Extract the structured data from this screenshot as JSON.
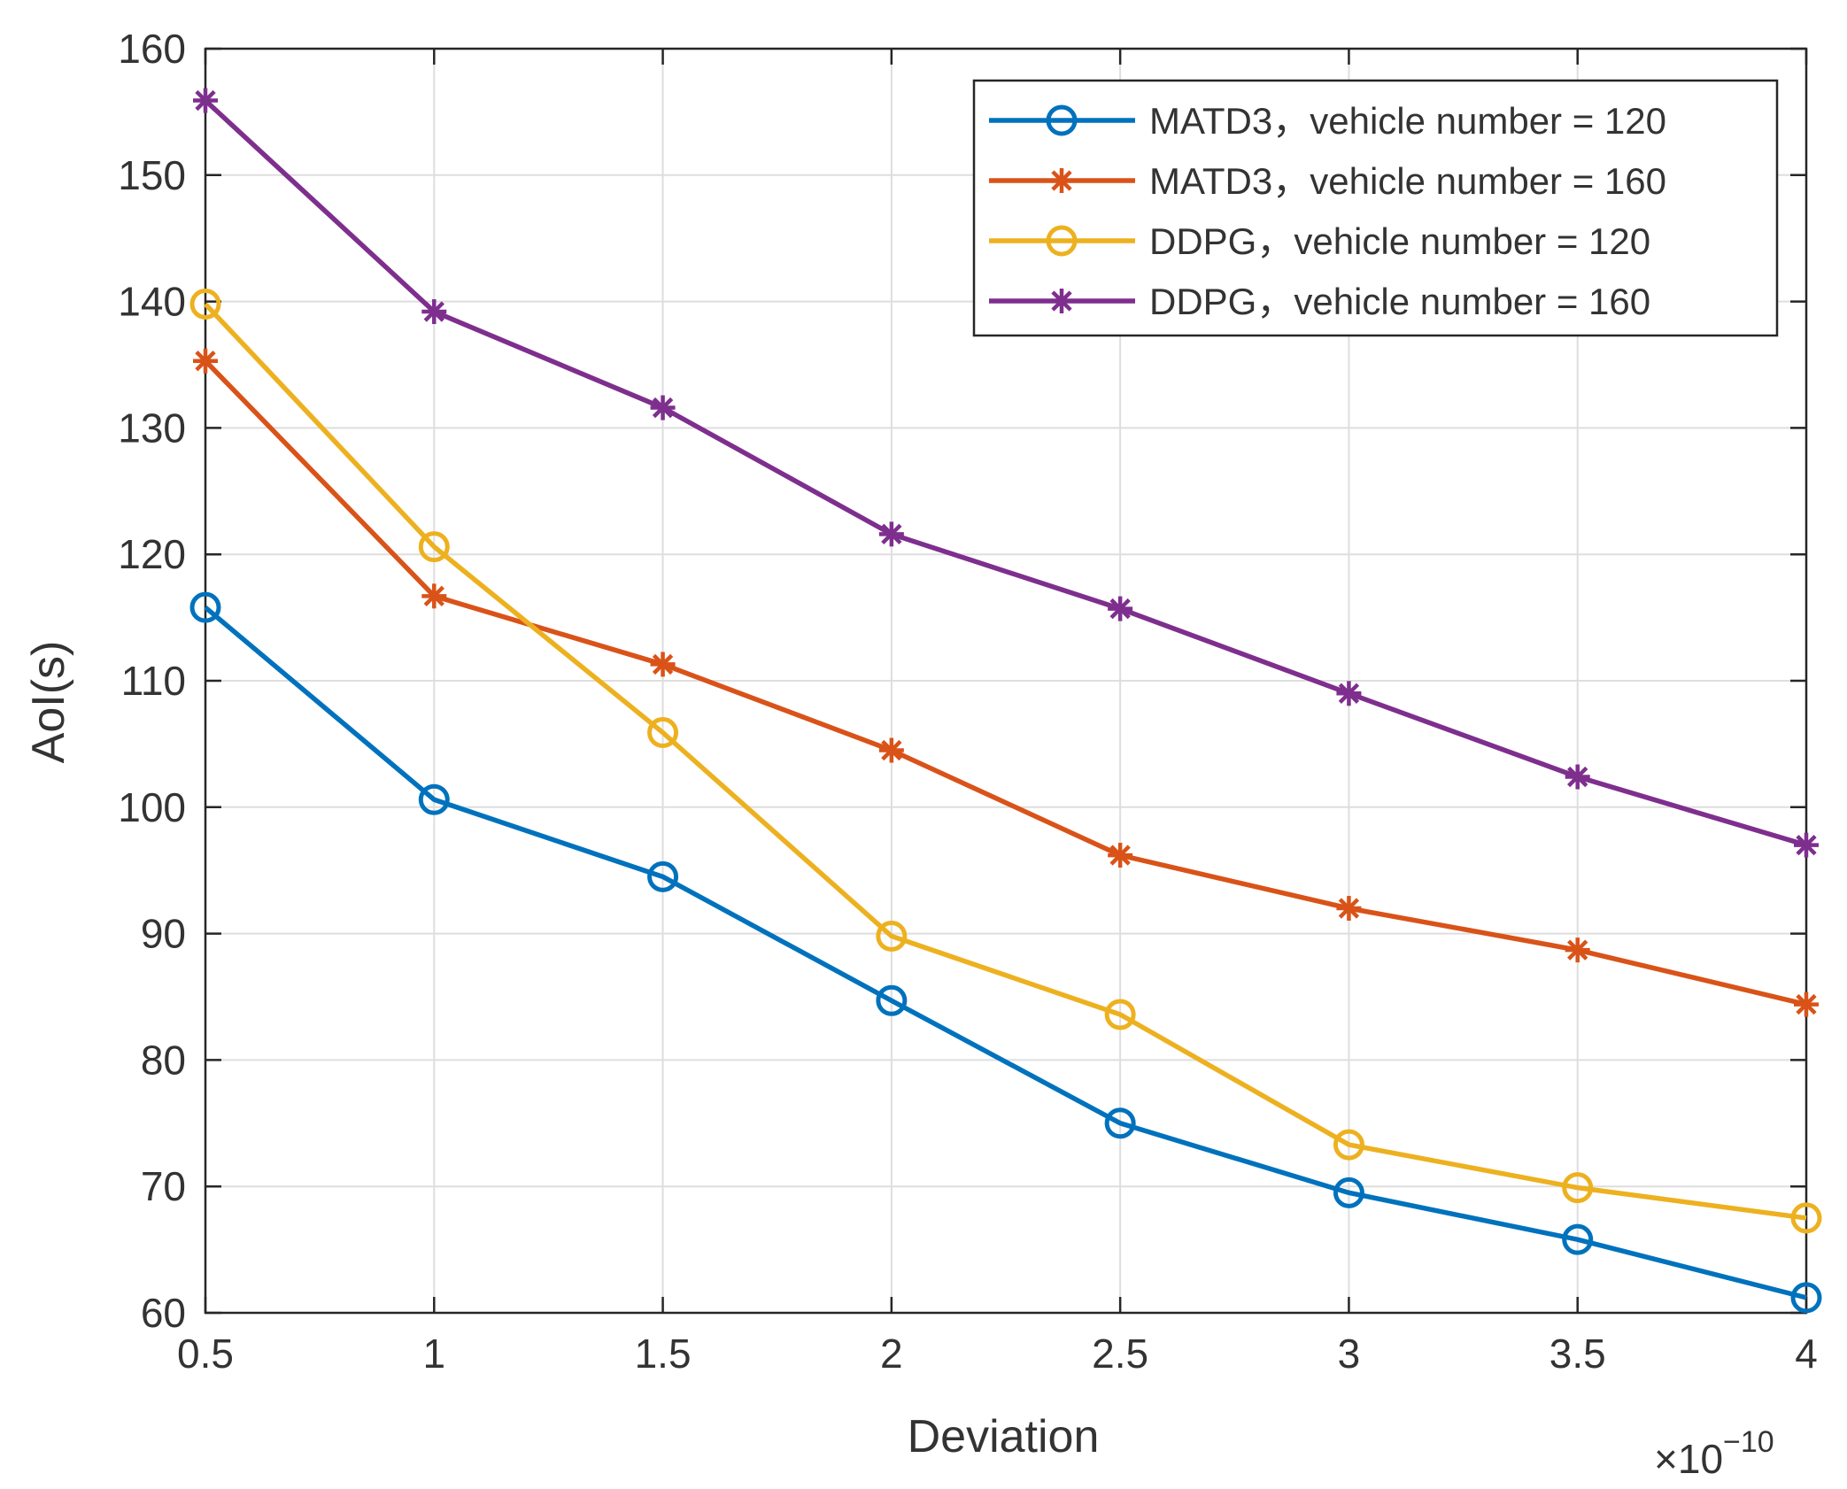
{
  "chart_data": {
    "type": "line",
    "title": "",
    "xlabel": "Deviation",
    "ylabel": "AoI(s)",
    "x_multiplier_prefix": "×10",
    "x_multiplier_exponent": "−10",
    "x": [
      0.5,
      1,
      1.5,
      2,
      2.5,
      3,
      3.5,
      4
    ],
    "xlim": [
      0.5,
      4
    ],
    "ylim": [
      60,
      160
    ],
    "xticks": [
      0.5,
      1,
      1.5,
      2,
      2.5,
      3,
      3.5,
      4
    ],
    "xtick_labels": [
      "0.5",
      "1",
      "1.5",
      "2",
      "2.5",
      "3",
      "3.5",
      "4"
    ],
    "yticks": [
      60,
      70,
      80,
      90,
      100,
      110,
      120,
      130,
      140,
      150,
      160
    ],
    "ytick_labels": [
      "60",
      "70",
      "80",
      "90",
      "100",
      "110",
      "120",
      "130",
      "140",
      "150",
      "160"
    ],
    "grid": true,
    "legend_position": "top-right",
    "series": [
      {
        "name": "MATD3，vehicle number = 120",
        "color": "#0072BD",
        "marker": "circle",
        "values": [
          115.8,
          100.6,
          94.5,
          84.7,
          75.0,
          69.5,
          65.8,
          61.2
        ]
      },
      {
        "name": "MATD3，vehicle number = 160",
        "color": "#D95319",
        "marker": "asterisk",
        "values": [
          135.3,
          116.7,
          111.3,
          104.5,
          96.2,
          92.0,
          88.7,
          84.4
        ]
      },
      {
        "name": "DDPG，vehicle number = 120",
        "color": "#EDB120",
        "marker": "circle",
        "values": [
          139.8,
          120.6,
          105.9,
          89.8,
          83.6,
          73.3,
          69.9,
          67.5
        ]
      },
      {
        "name": "DDPG，vehicle number = 160",
        "color": "#7E2F8E",
        "marker": "asterisk",
        "values": [
          155.9,
          139.2,
          131.6,
          121.6,
          115.7,
          109.0,
          102.4,
          97.0
        ]
      }
    ]
  }
}
